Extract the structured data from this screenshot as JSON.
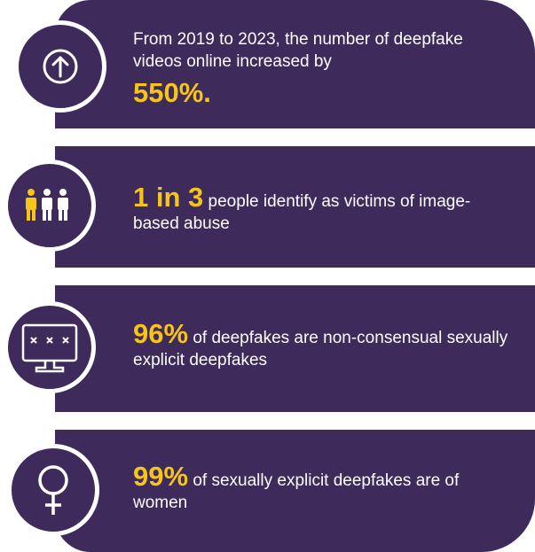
{
  "items": [
    {
      "text": "From 2019 to 2023, the number of deepfake videos online increased by",
      "highlight": "550%."
    },
    {
      "highlight": "1 in 3",
      "text": "people identify as victims of image-based abuse"
    },
    {
      "highlight": "96%",
      "text": "of deepfakes are non-consensual sexually explicit deepfakes"
    },
    {
      "highlight": "99%",
      "text": "of sexually explicit deepfakes are of women"
    }
  ]
}
